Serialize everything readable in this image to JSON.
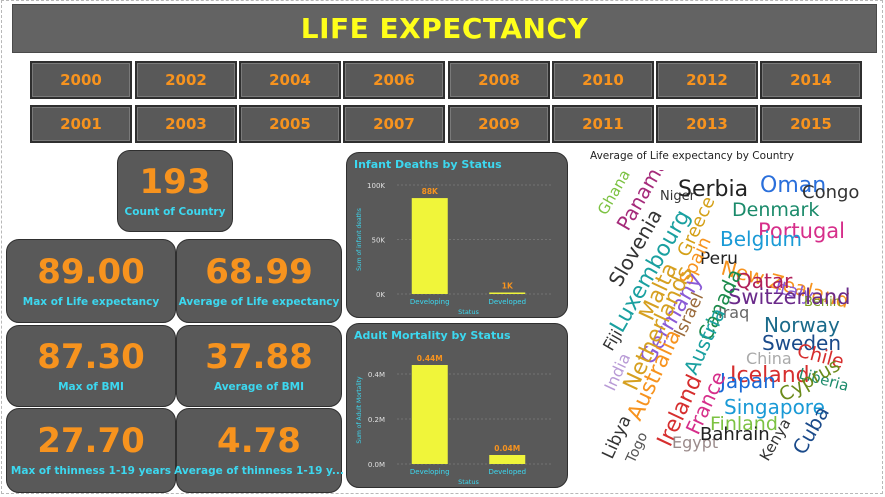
{
  "title": "LIFE EXPECTANCY",
  "years_top": [
    "2000",
    "2002",
    "2004",
    "2006",
    "2008",
    "2010",
    "2012",
    "2014"
  ],
  "years_bottom": [
    "2001",
    "2003",
    "2005",
    "2007",
    "2009",
    "2011",
    "2013",
    "2015"
  ],
  "kpis": {
    "count_country": {
      "value": "193",
      "label": "Count of Country"
    },
    "max_life": {
      "value": "89.00",
      "label": "Max of Life expectancy"
    },
    "avg_life": {
      "value": "68.99",
      "label": "Average of Life expectancy"
    },
    "max_bmi": {
      "value": "87.30",
      "label": "Max of  BMI"
    },
    "avg_bmi": {
      "value": "37.88",
      "label": "Average of  BMI"
    },
    "max_thin": {
      "value": "27.70",
      "label": "Max of  thinness  1-19 years"
    },
    "avg_thin": {
      "value": "4.78",
      "label": "Average of  thinness  1-19 y..."
    }
  },
  "wordcloud_title": "Average of Life expectancy by Country",
  "wordcloud_words": [
    {
      "t": "Ghana",
      "c": "#7cc242"
    },
    {
      "t": "Panama",
      "c": "#a52a7a"
    },
    {
      "t": "Niger",
      "c": "#333333"
    },
    {
      "t": "Serbia",
      "c": "#222222"
    },
    {
      "t": "Oman",
      "c": "#2a6fdb"
    },
    {
      "t": "Congo",
      "c": "#333333"
    },
    {
      "t": "Denmark",
      "c": "#1a8a6a"
    },
    {
      "t": "Slovenia",
      "c": "#333333"
    },
    {
      "t": "Greece",
      "c": "#d4a017"
    },
    {
      "t": "Portugal",
      "c": "#d62e8a"
    },
    {
      "t": "Belgium",
      "c": "#1a9ad6"
    },
    {
      "t": "Luxembourg",
      "c": "#1aa0a0"
    },
    {
      "t": "Peru",
      "c": "#222222"
    },
    {
      "t": "New Zealand",
      "c": "#f7931e"
    },
    {
      "t": "Spain",
      "c": "#f7931e"
    },
    {
      "t": "Italy",
      "c": "#8a5ad6"
    },
    {
      "t": "Qatar",
      "c": "#b0205a"
    },
    {
      "t": "Benin",
      "c": "#7a9a1a"
    },
    {
      "t": "Malta",
      "c": "#d6a020"
    },
    {
      "t": "Switzerland",
      "c": "#6a2a8a"
    },
    {
      "t": "Fiji",
      "c": "#333333"
    },
    {
      "t": "Germany",
      "c": "#8a5ad6"
    },
    {
      "t": "Israel",
      "c": "#9a6a3a"
    },
    {
      "t": "Canada",
      "c": "#1a8a4a"
    },
    {
      "t": "Iraq",
      "c": "#666666"
    },
    {
      "t": "Norway",
      "c": "#1a6a8a"
    },
    {
      "t": "Netherlands",
      "c": "#d6a020"
    },
    {
      "t": "Austria",
      "c": "#1aa0a0"
    },
    {
      "t": "Sweden",
      "c": "#1a4a8a"
    },
    {
      "t": "Chile",
      "c": "#d62e2e"
    },
    {
      "t": "India",
      "c": "#b89ad6"
    },
    {
      "t": "China",
      "c": "#aaaaaa"
    },
    {
      "t": "Iceland",
      "c": "#d62e2e"
    },
    {
      "t": "Liberia",
      "c": "#1a8a6a"
    },
    {
      "t": "Australia",
      "c": "#f7931e"
    },
    {
      "t": "Japan",
      "c": "#1a6ad6"
    },
    {
      "t": "Cyprus",
      "c": "#6a8a1a"
    },
    {
      "t": "Libya",
      "c": "#333333"
    },
    {
      "t": "Ireland",
      "c": "#d62e2e"
    },
    {
      "t": "France",
      "c": "#d62e8a"
    },
    {
      "t": "Singapore",
      "c": "#1a9ad6"
    },
    {
      "t": "Finland",
      "c": "#7cc242"
    },
    {
      "t": "Togo",
      "c": "#555555"
    },
    {
      "t": "Egypt",
      "c": "#9a8a8a"
    },
    {
      "t": "Bahrain",
      "c": "#222222"
    },
    {
      "t": "Kenya",
      "c": "#333333"
    },
    {
      "t": "Cuba",
      "c": "#1a4a8a"
    }
  ],
  "chart_data": [
    {
      "type": "bar",
      "title": "Infant Deaths by Status",
      "xlabel": "Status",
      "ylabel": "Sum of infant deaths",
      "categories": [
        "Developing",
        "Developed"
      ],
      "values": [
        88000,
        1000
      ],
      "data_labels": [
        "88K",
        "1K"
      ],
      "yticks": [
        "0K",
        "50K",
        "100K"
      ],
      "ylim": [
        0,
        100000
      ],
      "color": "#f0f53a"
    },
    {
      "type": "bar",
      "title": "Adult Mortality by Status",
      "xlabel": "Status",
      "ylabel": "Sum of Adult Mortality",
      "categories": [
        "Developing",
        "Developed"
      ],
      "values": [
        440000,
        40000
      ],
      "data_labels": [
        "0.44M",
        "0.04M"
      ],
      "yticks": [
        "0.0M",
        "0.2M",
        "0.4M"
      ],
      "ylim": [
        0,
        480000
      ],
      "color": "#f0f53a"
    }
  ]
}
